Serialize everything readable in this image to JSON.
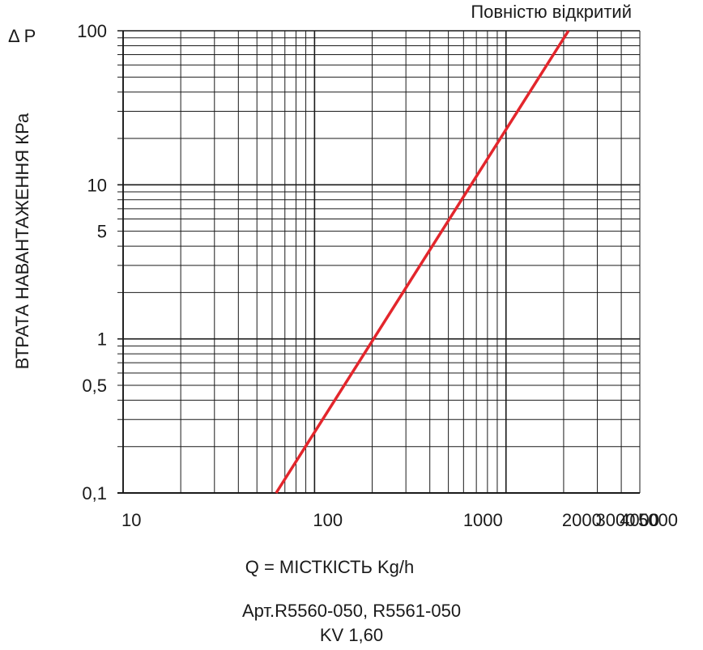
{
  "chart_data": {
    "type": "line",
    "x_scale": "log",
    "y_scale": "log",
    "xlim": [
      10,
      5000
    ],
    "ylim": [
      0.1,
      100
    ],
    "x_ticks": [
      10,
      100,
      1000,
      2000,
      3000,
      4000,
      5000
    ],
    "y_ticks": [
      0.1,
      0.5,
      1,
      5,
      10,
      100
    ],
    "x_tick_labels": [
      "10",
      "100",
      "1000",
      "2000",
      "3000",
      "4000",
      "5000"
    ],
    "y_tick_labels": [
      "0,1",
      "0,5",
      "1",
      "5",
      "10",
      "100"
    ],
    "xlabel": "Q = МІСТКІСТЬ Kg/h",
    "ylabel": "ВТРАТА НАВАНТАЖЕННЯ КРа",
    "y_unit_label": "Δ P",
    "grid": true,
    "series": [
      {
        "name": "Повністю відкритий",
        "color": "#e3262c",
        "x": [
          63,
          2120
        ],
        "y": [
          0.1,
          100
        ]
      }
    ]
  },
  "caption": {
    "line1": "Арт.R5560-050, R5561-050",
    "line2": "KV 1,60"
  }
}
